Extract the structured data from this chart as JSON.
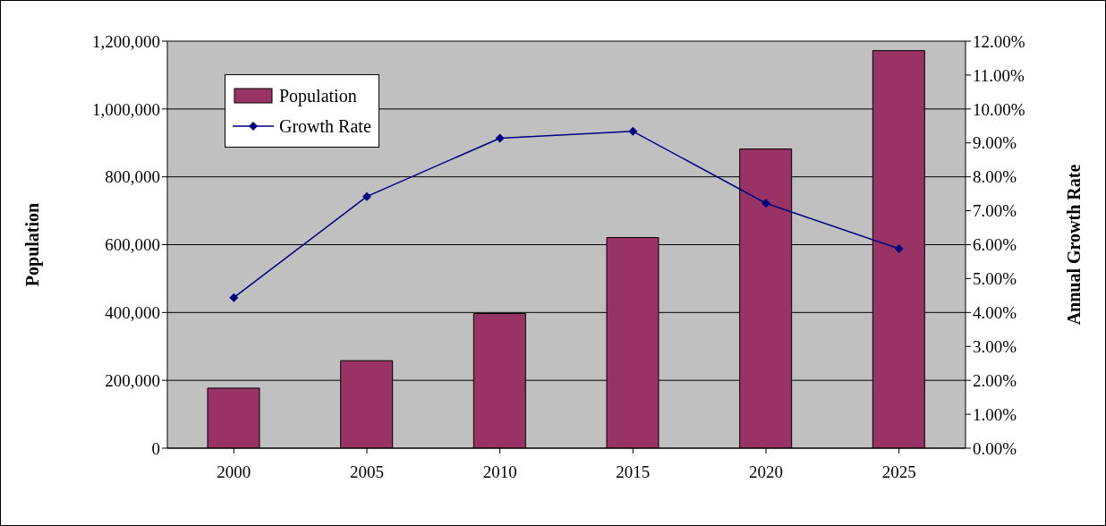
{
  "chart_data": {
    "type": "bar",
    "ylabel": "Population",
    "y2label": "Annual Growth Rate",
    "categories": [
      "2000",
      "2005",
      "2010",
      "2015",
      "2020",
      "2025"
    ],
    "series": [
      {
        "name": "Population",
        "color": "#993366",
        "values": [
          177000,
          258000,
          397000,
          621000,
          882000,
          1172000
        ]
      },
      {
        "name": "Growth Rate",
        "type": "line",
        "axis": "y2",
        "color": "#000080",
        "marker": "diamond",
        "values": [
          4.44,
          7.42,
          9.14,
          9.34,
          7.22,
          5.88
        ]
      }
    ],
    "ylim": [
      0,
      1200000
    ],
    "yticks": [
      {
        "value": 0,
        "label": "0"
      },
      {
        "value": 200000,
        "label": "200,000"
      },
      {
        "value": 400000,
        "label": "400,000"
      },
      {
        "value": 600000,
        "label": "600,000"
      },
      {
        "value": 800000,
        "label": "800,000"
      },
      {
        "value": 1000000,
        "label": "1,000,000"
      },
      {
        "value": 1200000,
        "label": "1,200,000"
      }
    ],
    "y2lim": [
      0,
      12
    ],
    "y2ticks": [
      {
        "value": 0,
        "label": "0.00%"
      },
      {
        "value": 1,
        "label": "1.00%"
      },
      {
        "value": 2,
        "label": "2.00%"
      },
      {
        "value": 3,
        "label": "3.00%"
      },
      {
        "value": 4,
        "label": "4.00%"
      },
      {
        "value": 5,
        "label": "5.00%"
      },
      {
        "value": 6,
        "label": "6.00%"
      },
      {
        "value": 7,
        "label": "7.00%"
      },
      {
        "value": 8,
        "label": "8.00%"
      },
      {
        "value": 9,
        "label": "9.00%"
      },
      {
        "value": 10,
        "label": "10.00%"
      },
      {
        "value": 11,
        "label": "11.00%"
      },
      {
        "value": 12,
        "label": "12.00%"
      }
    ],
    "grid": "y",
    "legend": "top left"
  }
}
